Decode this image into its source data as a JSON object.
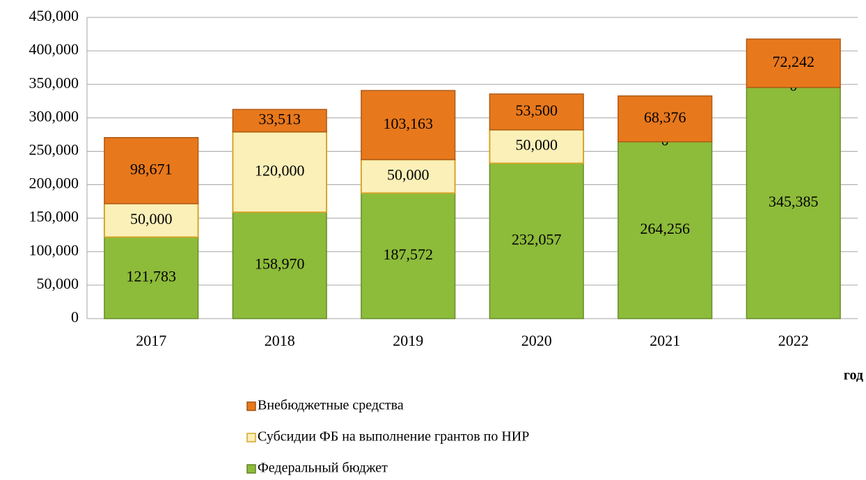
{
  "chart_data": {
    "type": "stacked_bar",
    "x_label": "год",
    "categories": [
      "2017",
      "2018",
      "2019",
      "2020",
      "2021",
      "2022"
    ],
    "series": [
      {
        "name": "Федеральный бюджет",
        "color": "#8dbb3a",
        "values": [
          121783,
          158970,
          187572,
          232057,
          264256,
          345385
        ],
        "value_labels": [
          "121,783",
          "158,970",
          "187,572",
          "232,057",
          "264,256",
          "345,385"
        ]
      },
      {
        "name": "Субсидии ФБ на выполнение грантов по НИР",
        "color": "#fbf0b8",
        "values": [
          50000,
          120000,
          50000,
          50000,
          0,
          0
        ],
        "value_labels": [
          "50,000",
          "120,000",
          "50,000",
          "50,000",
          "0",
          "0"
        ]
      },
      {
        "name": "Внебюджетные средства",
        "color": "#e8781c",
        "values": [
          98671,
          33513,
          103163,
          53500,
          68376,
          72242
        ],
        "value_labels": [
          "98,671",
          "33,513",
          "103,163",
          "53,500",
          "68,376",
          "72,242"
        ]
      }
    ],
    "ylim": [
      0,
      450000
    ],
    "yticks": [
      0,
      {
        "value": 50000,
        "label": "50,000"
      },
      {
        "value": 100000,
        "label": "100,000"
      },
      {
        "value": 150000,
        "label": "150,000"
      },
      {
        "value": 200000,
        "label": "200,000"
      },
      {
        "value": 250000,
        "label": "250,000"
      },
      {
        "value": 300000,
        "label": "300,000"
      },
      {
        "value": 350000,
        "label": "350,000"
      },
      {
        "value": 400000,
        "label": "400,000"
      },
      {
        "value": 450000,
        "label": "450,000"
      }
    ],
    "grid": true
  }
}
